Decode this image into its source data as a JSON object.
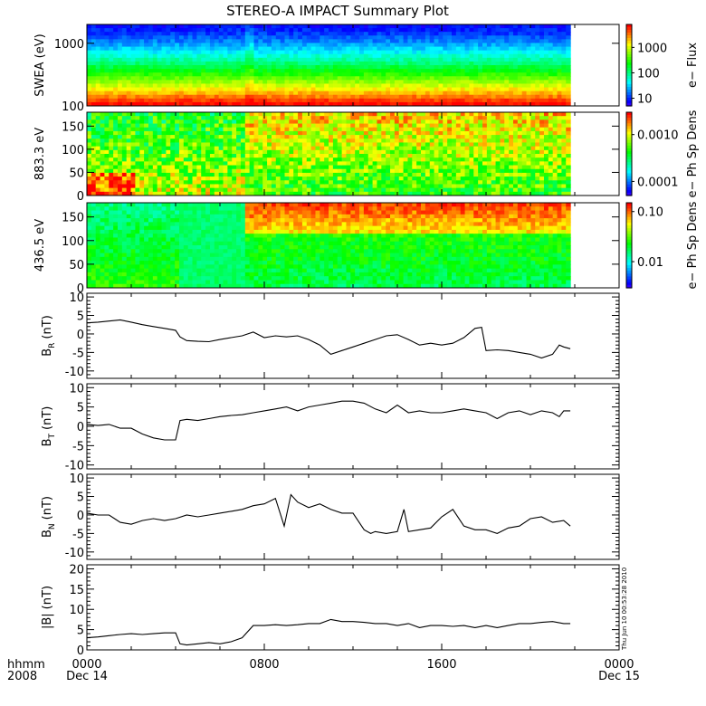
{
  "title": "STEREO-A IMPACT Summary Plot",
  "stamp": "Thu Jun 10 00:53:28 2010",
  "time_axis": {
    "label_line1": "hhmm",
    "label_line2": "2008",
    "ticks": [
      {
        "hour": 0,
        "label": "0000",
        "sublabel": "Dec 14"
      },
      {
        "hour": 8,
        "label": "0800",
        "sublabel": ""
      },
      {
        "hour": 16,
        "label": "1600",
        "sublabel": ""
      },
      {
        "hour": 24,
        "label": "0000",
        "sublabel": "Dec 15"
      }
    ],
    "data_end_hour": 21.8
  },
  "spectrograms": [
    {
      "ylabel": "SWEA (eV)",
      "yscale": "log",
      "ylim": [
        100,
        2000
      ],
      "yticks": [
        {
          "v": 100,
          "label": "100"
        },
        {
          "v": 1000,
          "label": "1000"
        }
      ],
      "colorbar_label": "e− Flux",
      "colorbar_scale": "log",
      "colorbar_range": [
        5,
        8000
      ],
      "colorbar_ticks": [
        {
          "v": 10,
          "label": "10"
        },
        {
          "v": 100,
          "label": "100"
        },
        {
          "v": 1000,
          "label": "1000"
        }
      ]
    },
    {
      "ylabel": "883.3 eV",
      "yscale": "linear",
      "ylim": [
        0,
        180
      ],
      "yticks": [
        {
          "v": 0,
          "label": "0"
        },
        {
          "v": 50,
          "label": "50"
        },
        {
          "v": 100,
          "label": "100"
        },
        {
          "v": 150,
          "label": "150"
        }
      ],
      "colorbar_label": "e− Ph Sp Dens",
      "colorbar_scale": "log",
      "colorbar_range": [
        5e-05,
        0.003
      ],
      "colorbar_ticks": [
        {
          "v": 0.0001,
          "label": "0.0001"
        },
        {
          "v": 0.001,
          "label": "0.0010"
        }
      ]
    },
    {
      "ylabel": "436.5 eV",
      "yscale": "linear",
      "ylim": [
        0,
        180
      ],
      "yticks": [
        {
          "v": 0,
          "label": "0"
        },
        {
          "v": 50,
          "label": "50"
        },
        {
          "v": 100,
          "label": "100"
        },
        {
          "v": 150,
          "label": "150"
        }
      ],
      "colorbar_label": "e− Ph Sp Dens",
      "colorbar_scale": "log",
      "colorbar_range": [
        0.003,
        0.15
      ],
      "colorbar_ticks": [
        {
          "v": 0.01,
          "label": "0.01"
        },
        {
          "v": 0.1,
          "label": "0.10"
        }
      ]
    }
  ],
  "chart_data": [
    {
      "type": "line",
      "ylabel": "B",
      "ylabel_sub": "R",
      "ylabel_unit": "(nT)",
      "ylim": [
        -12,
        11
      ],
      "yticks": [
        -10,
        -5,
        0,
        5,
        10
      ],
      "x": [
        0,
        0.5,
        1,
        1.5,
        2,
        2.5,
        3,
        3.5,
        4,
        4.2,
        4.5,
        5,
        5.5,
        6,
        6.5,
        7,
        7.5,
        8,
        8.5,
        9,
        9.5,
        10,
        10.5,
        11,
        11.5,
        12,
        12.5,
        13,
        13.5,
        14,
        14.5,
        15,
        15.5,
        16,
        16.5,
        17,
        17.5,
        17.8,
        18,
        18.5,
        19,
        19.5,
        20,
        20.5,
        21,
        21.3,
        21.5,
        21.8
      ],
      "y": [
        3,
        3.2,
        3.5,
        3.8,
        3.2,
        2.5,
        2,
        1.5,
        1,
        -0.8,
        -1.8,
        -2,
        -2.1,
        -1.5,
        -1,
        -0.5,
        0.5,
        -1,
        -0.5,
        -0.8,
        -0.5,
        -1.5,
        -3,
        -5.5,
        -4.5,
        -3.5,
        -2.5,
        -1.5,
        -0.5,
        -0.2,
        -1.5,
        -3,
        -2.5,
        -3,
        -2.5,
        -1,
        1.5,
        1.8,
        -4.5,
        -4.3,
        -4.5,
        -5,
        -5.5,
        -6.5,
        -5.5,
        -3,
        -3.5,
        -4
      ]
    },
    {
      "type": "line",
      "ylabel": "B",
      "ylabel_sub": "T",
      "ylabel_unit": "(nT)",
      "ylim": [
        -11,
        11
      ],
      "yticks": [
        -10,
        -5,
        0,
        5,
        10
      ],
      "x": [
        0,
        0.5,
        1,
        1.5,
        2,
        2.5,
        3,
        3.5,
        4,
        4.2,
        4.5,
        5,
        5.5,
        6,
        6.5,
        7,
        7.5,
        8,
        8.5,
        9,
        9.5,
        10,
        10.5,
        11,
        11.5,
        12,
        12.5,
        13,
        13.5,
        14,
        14.5,
        15,
        15.5,
        16,
        16.5,
        17,
        17.5,
        18,
        18.5,
        19,
        19.5,
        20,
        20.5,
        21,
        21.3,
        21.5,
        21.8
      ],
      "y": [
        0.5,
        0.2,
        0.5,
        -0.5,
        -0.5,
        -2,
        -3,
        -3.5,
        -3.5,
        1.5,
        1.8,
        1.5,
        2,
        2.5,
        2.8,
        3,
        3.5,
        4,
        4.5,
        5,
        4,
        5,
        5.5,
        6,
        6.5,
        6.5,
        6,
        4.5,
        3.5,
        5.5,
        3.5,
        4,
        3.5,
        3.5,
        4,
        4.5,
        4,
        3.5,
        2,
        3.5,
        4,
        3,
        4,
        3.5,
        2.5,
        4,
        4
      ]
    },
    {
      "type": "line",
      "ylabel": "B",
      "ylabel_sub": "N",
      "ylabel_unit": "(nT)",
      "ylim": [
        -12,
        11
      ],
      "yticks": [
        -10,
        -5,
        0,
        5,
        10
      ],
      "x": [
        0,
        0.5,
        1,
        1.5,
        2,
        2.5,
        3,
        3.5,
        4,
        4.5,
        5,
        5.5,
        6,
        6.5,
        7,
        7.5,
        8,
        8.5,
        8.9,
        9.2,
        9.5,
        10,
        10.5,
        11,
        11.5,
        12,
        12.5,
        12.8,
        13,
        13.5,
        14,
        14.3,
        14.5,
        15,
        15.5,
        16,
        16.5,
        17,
        17.5,
        18,
        18.5,
        19,
        19.5,
        20,
        20.5,
        21,
        21.5,
        21.8
      ],
      "y": [
        0.5,
        0,
        0,
        -2,
        -2.5,
        -1.5,
        -1,
        -1.5,
        -1,
        0,
        -0.5,
        0,
        0.5,
        1,
        1.5,
        2.5,
        3,
        4.5,
        -3,
        5.5,
        3.5,
        2,
        3,
        1.5,
        0.5,
        0.5,
        -4,
        -5,
        -4.5,
        -5,
        -4.5,
        1.5,
        -4.5,
        -4,
        -3.5,
        -0.5,
        1.5,
        -3,
        -4,
        -4,
        -5,
        -3.5,
        -3,
        -1,
        -0.5,
        -2,
        -1.5,
        -3
      ]
    },
    {
      "type": "line",
      "ylabel": "|B|",
      "ylabel_sub": "",
      "ylabel_unit": "(nT)",
      "ylim": [
        0,
        21
      ],
      "yticks": [
        0,
        5,
        10,
        15,
        20
      ],
      "x": [
        0,
        0.5,
        1,
        1.5,
        2,
        2.5,
        3,
        3.5,
        4,
        4.2,
        4.5,
        5,
        5.5,
        6,
        6.5,
        7,
        7.5,
        8,
        8.5,
        9,
        9.5,
        10,
        10.5,
        11,
        11.5,
        12,
        12.5,
        13,
        13.5,
        14,
        14.5,
        15,
        15.5,
        16,
        16.5,
        17,
        17.5,
        18,
        18.5,
        19,
        19.5,
        20,
        20.5,
        21,
        21.5,
        21.8
      ],
      "y": [
        3,
        3.2,
        3.5,
        3.8,
        4,
        3.8,
        4,
        4.2,
        4.2,
        1.5,
        1.2,
        1.5,
        1.8,
        1.5,
        2,
        3,
        6,
        6,
        6.2,
        6,
        6.2,
        6.5,
        6.5,
        7.5,
        7,
        7,
        6.8,
        6.5,
        6.5,
        6,
        6.5,
        5.5,
        6,
        6,
        5.8,
        6,
        5.5,
        6,
        5.5,
        6,
        6.5,
        6.5,
        6.8,
        7,
        6.5,
        6.5
      ]
    }
  ]
}
